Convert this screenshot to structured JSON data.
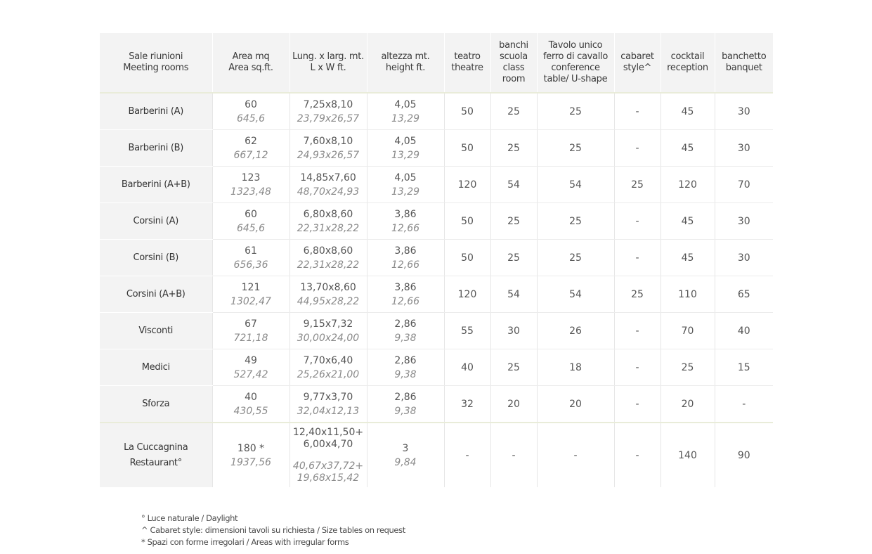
{
  "headers": [
    [
      "Sale riunioni",
      "Meeting rooms"
    ],
    [
      "Area mq",
      "Area sq.ft."
    ],
    [
      "Lung. x larg. mt.",
      "L x W ft."
    ],
    [
      "altezza mt.",
      "height ft."
    ],
    [
      "teatro",
      "theatre"
    ],
    [
      "banchi",
      "scuola",
      "class",
      "room"
    ],
    [
      "Tavolo unico",
      "ferro di cavallo",
      "conference",
      "table/ U-shape"
    ],
    [
      "cabaret",
      "style^"
    ],
    [
      "cocktail",
      "reception"
    ],
    [
      "banchetto",
      "banquet"
    ]
  ],
  "rooms": [
    {
      "name": "Barberini (A)",
      "area_mq": "60",
      "area_sqft": "645,6",
      "dim_mt": "7,25x8,10",
      "dim_ft": "23,79x26,57",
      "height_mt": "4,05",
      "height_ft": "13,29",
      "teatro": "50",
      "banchi": "25",
      "tavolo": "25",
      "cabaret": "-",
      "cocktail": "45",
      "banchetto": "30"
    },
    {
      "name": "Barberini (B)",
      "area_mq": "62",
      "area_sqft": "667,12",
      "dim_mt": "7,60x8,10",
      "dim_ft": "24,93x26,57",
      "height_mt": "4,05",
      "height_ft": "13,29",
      "teatro": "50",
      "banchi": "25",
      "tavolo": "25",
      "cabaret": "-",
      "cocktail": "45",
      "banchetto": "30"
    },
    {
      "name": "Barberini (A+B)",
      "area_mq": "123",
      "area_sqft": "1323,48",
      "dim_mt": "14,85x7,60",
      "dim_ft": "48,70x24,93",
      "height_mt": "4,05",
      "height_ft": "13,29",
      "teatro": "120",
      "banchi": "54",
      "tavolo": "54",
      "cabaret": "25",
      "cocktail": "120",
      "banchetto": "70"
    },
    {
      "name": "Corsini (A)",
      "area_mq": "60",
      "area_sqft": "645,6",
      "dim_mt": "6,80x8,60",
      "dim_ft": "22,31x28,22",
      "height_mt": "3,86",
      "height_ft": "12,66",
      "teatro": "50",
      "banchi": "25",
      "tavolo": "25",
      "cabaret": "-",
      "cocktail": "45",
      "banchetto": "30"
    },
    {
      "name": "Corsini (B)",
      "area_mq": "61",
      "area_sqft": "656,36",
      "dim_mt": "6,80x8,60",
      "dim_ft": "22,31x28,22",
      "height_mt": "3,86",
      "height_ft": "12,66",
      "teatro": "50",
      "banchi": "25",
      "tavolo": "25",
      "cabaret": "-",
      "cocktail": "45",
      "banchetto": "30"
    },
    {
      "name": "Corsini (A+B)",
      "area_mq": "121",
      "area_sqft": "1302,47",
      "dim_mt": "13,70x8,60",
      "dim_ft": "44,95x28,22",
      "height_mt": "3,86",
      "height_ft": "12,66",
      "teatro": "120",
      "banchi": "54",
      "tavolo": "54",
      "cabaret": "25",
      "cocktail": "110",
      "banchetto": "65"
    },
    {
      "name": "Visconti",
      "area_mq": "67",
      "area_sqft": "721,18",
      "dim_mt": "9,15x7,32",
      "dim_ft": "30,00x24,00",
      "height_mt": "2,86",
      "height_ft": "9,38",
      "teatro": "55",
      "banchi": "30",
      "tavolo": "26",
      "cabaret": "-",
      "cocktail": "70",
      "banchetto": "40"
    },
    {
      "name": "Medici",
      "area_mq": "49",
      "area_sqft": "527,42",
      "dim_mt": "7,70x6,40",
      "dim_ft": "25,26x21,00",
      "height_mt": "2,86",
      "height_ft": "9,38",
      "teatro": "40",
      "banchi": "25",
      "tavolo": "18",
      "cabaret": "-",
      "cocktail": "25",
      "banchetto": "15"
    },
    {
      "name": "Sforza",
      "area_mq": "40",
      "area_sqft": "430,55",
      "dim_mt": "9,77x3,70",
      "dim_ft": "32,04x12,13",
      "height_mt": "2,86",
      "height_ft": "9,38",
      "teatro": "32",
      "banchi": "20",
      "tavolo": "20",
      "cabaret": "-",
      "cocktail": "20",
      "banchetto": "-"
    }
  ],
  "restaurant": {
    "name_line1": "La Cuccagnina",
    "name_line2": "Restaurant°",
    "area_mq": "180 *",
    "area_sqft": "1937,56",
    "dim_mt_line1": "12,40x11,50+",
    "dim_mt_line2": "6,00x4,70",
    "dim_ft_line1": "40,67x37,72+",
    "dim_ft_line2": "19,68x15,42",
    "height_mt": "3",
    "height_ft": "9,84",
    "teatro": "-",
    "banchi": "-",
    "tavolo": "-",
    "cabaret": "-",
    "cocktail": "140",
    "banchetto": "90"
  },
  "footnotes": [
    "° Luce naturale / Daylight",
    "^ Cabaret style: dimensioni tavoli su richiesta / Size tables on request",
    "* Spazi con forme irregolari / Areas with irregular forms"
  ]
}
